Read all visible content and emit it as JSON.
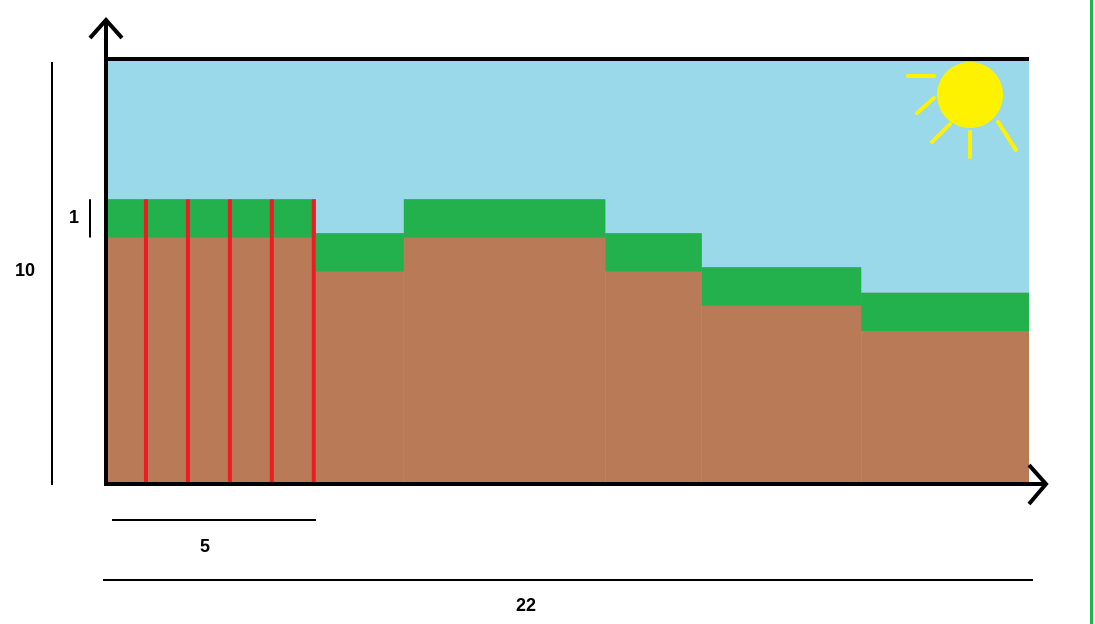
{
  "diagram": {
    "grid": {
      "width_units": 22,
      "height_units": 10
    },
    "colors": {
      "sky": "#99d9ea",
      "soil": "#b97a57",
      "grass": "#22b14c",
      "sun": "#fff200",
      "cut_lines": "#ed1c24",
      "axes": "#000000",
      "right_edge_line": "#22b14c"
    },
    "terrain_steps": [
      {
        "from": 0,
        "to": 5,
        "height": 6.7
      },
      {
        "from": 5,
        "to": 7.1,
        "height": 5.9
      },
      {
        "from": 7.1,
        "to": 11.9,
        "height": 6.7
      },
      {
        "from": 11.9,
        "to": 14.2,
        "height": 5.9
      },
      {
        "from": 14.2,
        "to": 18,
        "height": 5.1
      },
      {
        "from": 18,
        "to": 22,
        "height": 4.5
      }
    ],
    "grass_thickness": 0.9,
    "red_cuts": [
      1,
      2,
      3,
      4,
      5
    ],
    "sun_icon": "sun-icon"
  },
  "dimensions": {
    "height_label": "10",
    "grass_label": "1",
    "segment_label": "5",
    "total_label": "22"
  }
}
